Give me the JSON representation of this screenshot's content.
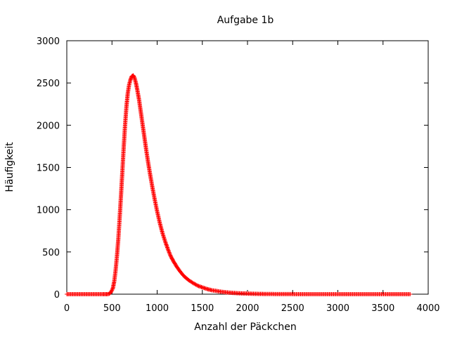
{
  "chart_data": {
    "type": "scatter",
    "title": "Aufgabe 1b",
    "xlabel": "Anzahl der Päckchen",
    "ylabel": "Häufigkeit",
    "xlim": [
      0,
      4000
    ],
    "ylim": [
      0,
      3000
    ],
    "xticks": [
      "0",
      "500",
      "1000",
      "1500",
      "2000",
      "2500",
      "3000",
      "3500",
      "4000"
    ],
    "yticks": [
      "0",
      "500",
      "1000",
      "1500",
      "2000",
      "2500",
      "3000"
    ],
    "grid": false,
    "legend": "none",
    "marker": "plus",
    "color": "#ff0000",
    "series": [
      {
        "points": [
          [
            0,
            0
          ],
          [
            100,
            0
          ],
          [
            200,
            0
          ],
          [
            300,
            0
          ],
          [
            400,
            0
          ],
          [
            450,
            0
          ],
          [
            470,
            5
          ],
          [
            490,
            25
          ],
          [
            510,
            70
          ],
          [
            525,
            150
          ],
          [
            540,
            280
          ],
          [
            555,
            450
          ],
          [
            570,
            650
          ],
          [
            585,
            900
          ],
          [
            600,
            1170
          ],
          [
            615,
            1450
          ],
          [
            630,
            1740
          ],
          [
            645,
            2000
          ],
          [
            660,
            2220
          ],
          [
            675,
            2380
          ],
          [
            690,
            2480
          ],
          [
            705,
            2540
          ],
          [
            720,
            2580
          ],
          [
            735,
            2590
          ],
          [
            750,
            2560
          ],
          [
            765,
            2500
          ],
          [
            780,
            2420
          ],
          [
            800,
            2300
          ],
          [
            820,
            2150
          ],
          [
            840,
            2000
          ],
          [
            860,
            1850
          ],
          [
            880,
            1700
          ],
          [
            900,
            1560
          ],
          [
            925,
            1400
          ],
          [
            950,
            1250
          ],
          [
            975,
            1110
          ],
          [
            1000,
            980
          ],
          [
            1030,
            840
          ],
          [
            1060,
            720
          ],
          [
            1090,
            620
          ],
          [
            1120,
            530
          ],
          [
            1150,
            450
          ],
          [
            1180,
            390
          ],
          [
            1220,
            320
          ],
          [
            1260,
            260
          ],
          [
            1300,
            210
          ],
          [
            1350,
            165
          ],
          [
            1400,
            130
          ],
          [
            1450,
            100
          ],
          [
            1500,
            80
          ],
          [
            1550,
            62
          ],
          [
            1600,
            48
          ],
          [
            1700,
            30
          ],
          [
            1800,
            18
          ],
          [
            1900,
            11
          ],
          [
            2000,
            7
          ],
          [
            2100,
            4
          ],
          [
            2200,
            2
          ],
          [
            2400,
            1
          ],
          [
            2600,
            0
          ],
          [
            2800,
            0
          ],
          [
            3000,
            0
          ],
          [
            3200,
            0
          ],
          [
            3400,
            0
          ],
          [
            3600,
            0
          ],
          [
            3800,
            0
          ]
        ]
      }
    ]
  }
}
